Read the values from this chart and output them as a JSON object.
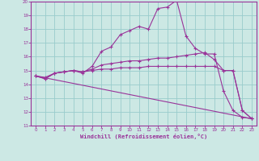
{
  "background_color": "#cce8e4",
  "line_color": "#993399",
  "grid_color": "#99cccc",
  "xlabel": "Windchill (Refroidissement éolien,°C)",
  "xlim": [
    -0.5,
    23.5
  ],
  "ylim": [
    11,
    20
  ],
  "yticks": [
    11,
    12,
    13,
    14,
    15,
    16,
    17,
    18,
    19,
    20
  ],
  "xticks": [
    0,
    1,
    2,
    3,
    4,
    5,
    6,
    7,
    8,
    9,
    10,
    11,
    12,
    13,
    14,
    15,
    16,
    17,
    18,
    19,
    20,
    21,
    22,
    23
  ],
  "line1_x": [
    0,
    1,
    2,
    3,
    4,
    5,
    6,
    7,
    8,
    9,
    10,
    11,
    12,
    13,
    14,
    15,
    16,
    17,
    18,
    19,
    20,
    21,
    22,
    23
  ],
  "line1_y": [
    14.6,
    14.4,
    14.8,
    14.9,
    15.0,
    14.8,
    15.3,
    16.4,
    16.7,
    17.6,
    17.9,
    18.2,
    18.0,
    19.5,
    19.6,
    20.1,
    17.5,
    16.6,
    16.2,
    16.2,
    13.5,
    12.1,
    11.6,
    11.5
  ],
  "line2_x": [
    0,
    1,
    2,
    3,
    4,
    5,
    6,
    7,
    8,
    9,
    10,
    11,
    12,
    13,
    14,
    15,
    16,
    17,
    18,
    19,
    20,
    21,
    22,
    23
  ],
  "line2_y": [
    14.6,
    14.4,
    14.8,
    14.9,
    15.0,
    14.9,
    15.1,
    15.4,
    15.5,
    15.6,
    15.7,
    15.7,
    15.8,
    15.9,
    15.9,
    16.0,
    16.1,
    16.2,
    16.3,
    15.8,
    15.0,
    15.0,
    12.1,
    11.5
  ],
  "line3_x": [
    0,
    1,
    2,
    3,
    4,
    5,
    6,
    7,
    8,
    9,
    10,
    11,
    12,
    13,
    14,
    15,
    16,
    17,
    18,
    19,
    20,
    21,
    22,
    23
  ],
  "line3_y": [
    14.6,
    14.5,
    14.8,
    14.9,
    15.0,
    14.9,
    15.0,
    15.1,
    15.1,
    15.2,
    15.2,
    15.2,
    15.3,
    15.3,
    15.3,
    15.3,
    15.3,
    15.3,
    15.3,
    15.3,
    15.0,
    15.0,
    12.1,
    11.5
  ],
  "line4_x": [
    0,
    23
  ],
  "line4_y": [
    14.6,
    11.5
  ]
}
